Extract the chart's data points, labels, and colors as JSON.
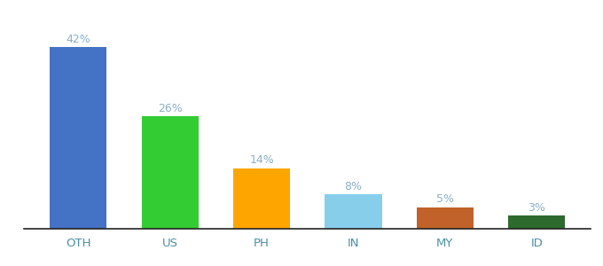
{
  "categories": [
    "OTH",
    "US",
    "PH",
    "IN",
    "MY",
    "ID"
  ],
  "values": [
    42,
    26,
    14,
    8,
    5,
    3
  ],
  "labels": [
    "42%",
    "26%",
    "14%",
    "8%",
    "5%",
    "3%"
  ],
  "bar_colors": [
    "#4472C4",
    "#33CC33",
    "#FFA500",
    "#87CEEB",
    "#C0622A",
    "#2D6A2D"
  ],
  "background_color": "#ffffff",
  "ylim": [
    0,
    48
  ],
  "label_color": "#8aafc8",
  "xlabel_color": "#4a90a4",
  "bar_width": 0.62
}
